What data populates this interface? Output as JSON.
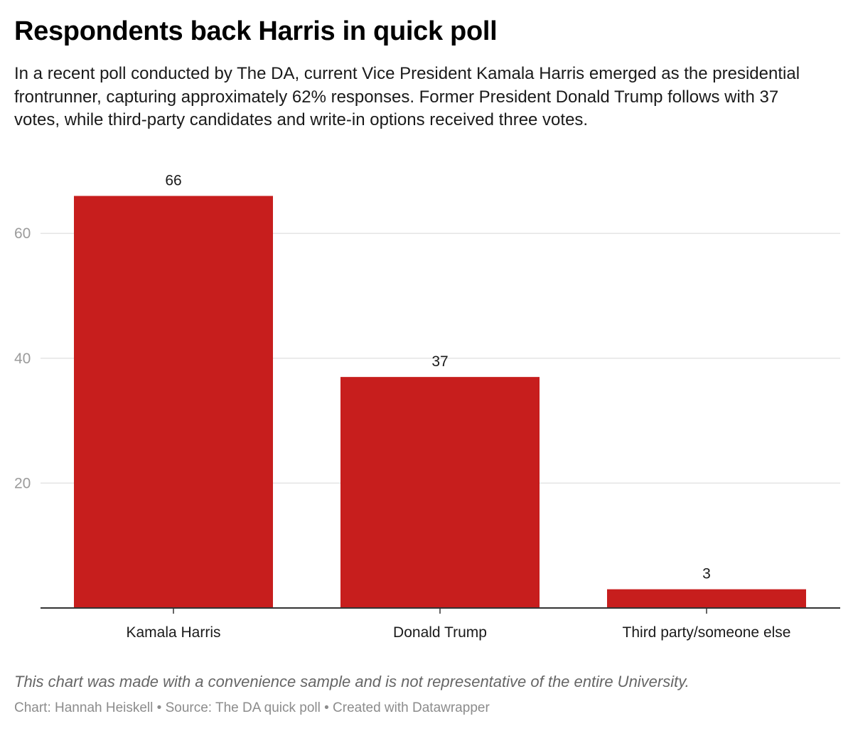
{
  "header": {
    "title": "Respondents back Harris in quick poll",
    "subtitle": "In a recent poll conducted by The DA, current Vice President Kamala Harris emerged as the presidential frontrunner, capturing approximately 62% responses. Former President Donald Trump follows with 37 votes, while third-party candidates and write-in options received three votes."
  },
  "chart_data": {
    "type": "bar",
    "categories": [
      "Kamala Harris",
      "Donald Trump",
      "Third party/someone else"
    ],
    "values": [
      66,
      37,
      3
    ],
    "value_labels": [
      "66",
      "37",
      "3"
    ],
    "yticks": [
      20,
      40,
      60
    ],
    "ytick_labels": [
      "20",
      "40",
      "60"
    ],
    "ylim": [
      0,
      66
    ],
    "grid": true,
    "bar_color": "#c71e1d",
    "xlabel": "",
    "ylabel": ""
  },
  "footer": {
    "notes": "This chart was made with a convenience sample and is not representative of the entire University.",
    "byline": "Chart: Hannah Heiskell • Source: The DA quick poll • Created with Datawrapper"
  }
}
